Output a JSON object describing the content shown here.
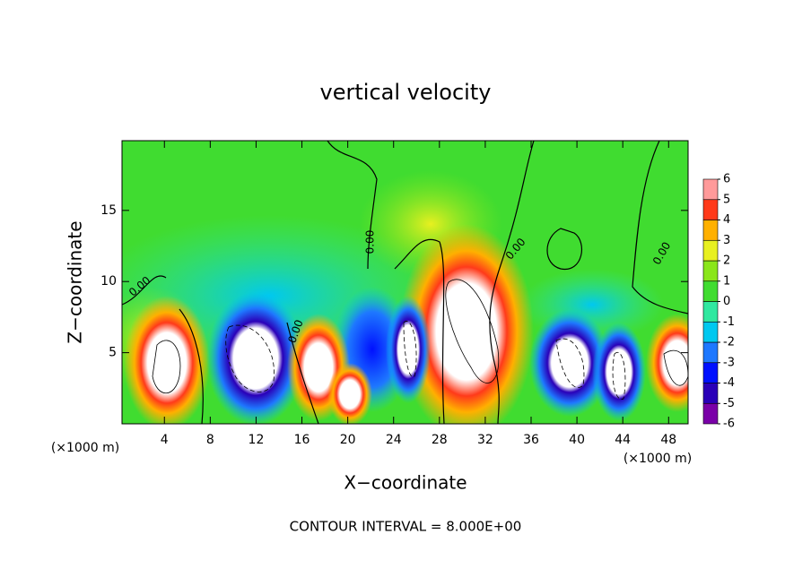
{
  "chart_data": {
    "type": "contour",
    "title": "vertical velocity",
    "xlabel": "X−coordinate",
    "ylabel": "Z−coordinate",
    "x_unit": "(×1000 m)",
    "annotation": "CONTOUR INTERVAL = 8.000E+00",
    "contour_levels": [
      {
        "value": 0,
        "label": "0.00"
      }
    ],
    "xlim": [
      0.3,
      49.7
    ],
    "xticks": [
      4,
      8,
      12,
      16,
      20,
      24,
      28,
      32,
      36,
      40,
      44,
      48
    ],
    "ylim": [
      0,
      19.9
    ],
    "yticks": [
      5,
      10,
      15
    ],
    "colorbar": {
      "ticks": [
        -6,
        -5,
        -4,
        -3,
        -2,
        -1,
        0,
        1,
        2,
        3,
        4,
        5,
        6
      ],
      "colors": [
        "#7a00a8",
        "#2a00b8",
        "#0010ff",
        "#1e78ff",
        "#00c8f0",
        "#30e8a0",
        "#40dc30",
        "#8ae61a",
        "#e8f020",
        "#ffb000",
        "#ff3a1a",
        "#ff9a9a"
      ]
    }
  }
}
